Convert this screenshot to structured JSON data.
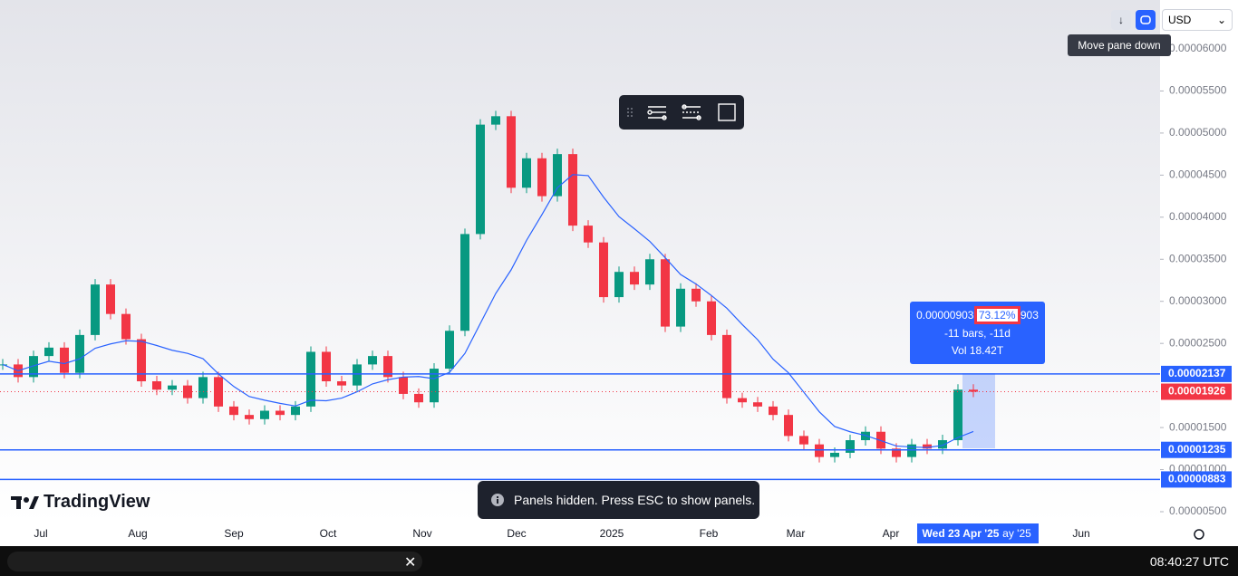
{
  "toolbar": {
    "currency": "USD",
    "tooltip": "Move pane down"
  },
  "chart": {
    "price_ticks": [
      {
        "value": 6e-05,
        "label": "0.00006000"
      },
      {
        "value": 5.5e-05,
        "label": "0.00005500"
      },
      {
        "value": 5e-05,
        "label": "0.00005000"
      },
      {
        "value": 4.5e-05,
        "label": "0.00004500"
      },
      {
        "value": 4e-05,
        "label": "0.00004000"
      },
      {
        "value": 3.5e-05,
        "label": "0.00003500"
      },
      {
        "value": 3e-05,
        "label": "0.00003000"
      },
      {
        "value": 2.5e-05,
        "label": "0.00002500"
      },
      {
        "value": 1.5e-05,
        "label": "0.00001500"
      },
      {
        "value": 1e-05,
        "label": "0.00001000"
      },
      {
        "value": 5e-06,
        "label": "0.00000500"
      }
    ],
    "time_labels": [
      "Jul",
      "Aug",
      "Sep",
      "Oct",
      "Nov",
      "Dec",
      "2025",
      "Feb",
      "Mar",
      "Apr",
      "Jun"
    ],
    "closes": [
      2.25e-05,
      2.1e-05,
      2.35e-05,
      2.45e-05,
      2.15e-05,
      2.6e-05,
      3.2e-05,
      2.85e-05,
      2.55e-05,
      2.05e-05,
      1.95e-05,
      2e-05,
      1.85e-05,
      2.1e-05,
      1.75e-05,
      1.65e-05,
      1.6e-05,
      1.7e-05,
      1.65e-05,
      1.75e-05,
      2.4e-05,
      2.05e-05,
      2e-05,
      2.25e-05,
      2.35e-05,
      2.1e-05,
      1.9e-05,
      1.8e-05,
      2.2e-05,
      2.65e-05,
      3.8e-05,
      5.1e-05,
      5.2e-05,
      4.35e-05,
      4.7e-05,
      4.25e-05,
      4.75e-05,
      3.9e-05,
      3.7e-05,
      3.05e-05,
      3.35e-05,
      3.2e-05,
      3.5e-05,
      2.7e-05,
      3.15e-05,
      3e-05,
      2.6e-05,
      1.85e-05,
      1.8e-05,
      1.75e-05,
      1.65e-05,
      1.4e-05,
      1.3e-05,
      1.15e-05,
      1.2e-05,
      1.35e-05,
      1.45e-05,
      1.25e-05,
      1.15e-05,
      1.3e-05,
      1.25e-05,
      1.35e-05,
      1.95e-05,
      1.926e-05
    ],
    "levels": [
      {
        "value": 2.137e-05,
        "label": "0.00002137"
      },
      {
        "value": 1.235e-05,
        "label": "0.00001235"
      },
      {
        "value": 8.83e-06,
        "label": "0.00000883"
      }
    ],
    "last_price": {
      "value": 1.926e-05,
      "label": "0.00001926"
    },
    "measure": {
      "price_change": "0.00000903",
      "percent": "73.12%",
      "ticks": "903",
      "bars": "-11 bars, -11d",
      "volume": "Vol 18.42T"
    },
    "crosshair_date": "Wed 23 Apr '25",
    "partial_label": "ay '25"
  },
  "brand": "TradingView",
  "toast": "Panels hidden. Press ESC to show panels.",
  "clock": "08:40:27 UTC"
}
